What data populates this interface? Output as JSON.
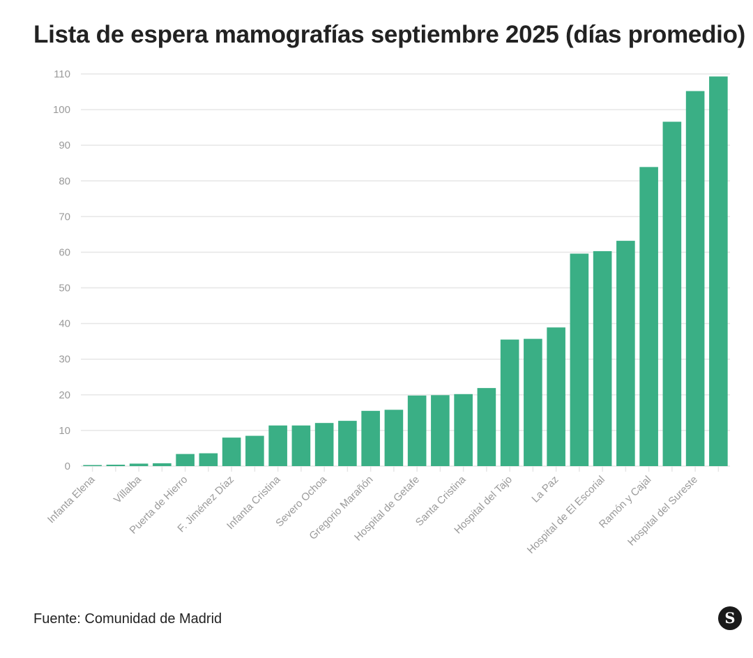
{
  "title": "Lista de espera mamografías septiembre 2025 (días promedio)",
  "source": "Fuente: Comunidad de Madrid",
  "logo_letter": "S",
  "colors": {
    "bar": "#3aaf85",
    "grid": "#e6e6e6",
    "tick": "#9a9a9a",
    "text": "#222222"
  },
  "chart_data": {
    "type": "bar",
    "title": "Lista de espera mamografías septiembre 2025 (días promedio)",
    "xlabel": "",
    "ylabel": "",
    "ylim": [
      0,
      110
    ],
    "yticks": [
      0,
      10,
      20,
      30,
      40,
      50,
      60,
      70,
      80,
      90,
      100,
      110
    ],
    "grid": true,
    "categories": [
      "Infanta Elena",
      "",
      "Villalba",
      "",
      "Puerta de Hierro",
      "",
      "F. Jiménez Díaz",
      "",
      "Infanta Cristina",
      "",
      "Severo Ochoa",
      "",
      "Gregorio Marañón",
      "",
      "Hospital de Getafe",
      "",
      "Santa Cristina",
      "",
      "Hospital del Tajo",
      "",
      "La Paz",
      "",
      "Hospital de El Escorial",
      "",
      "Ramón y Cajal",
      "",
      "Hospital del Sureste",
      ""
    ],
    "values": [
      0.3,
      0.4,
      0.7,
      0.8,
      3.4,
      3.6,
      8.0,
      8.5,
      11.4,
      11.4,
      12.1,
      12.7,
      15.5,
      15.8,
      19.8,
      19.9,
      20.2,
      21.9,
      35.5,
      35.7,
      38.9,
      59.6,
      60.3,
      63.2,
      83.9,
      96.6,
      105.2,
      109.3
    ]
  }
}
